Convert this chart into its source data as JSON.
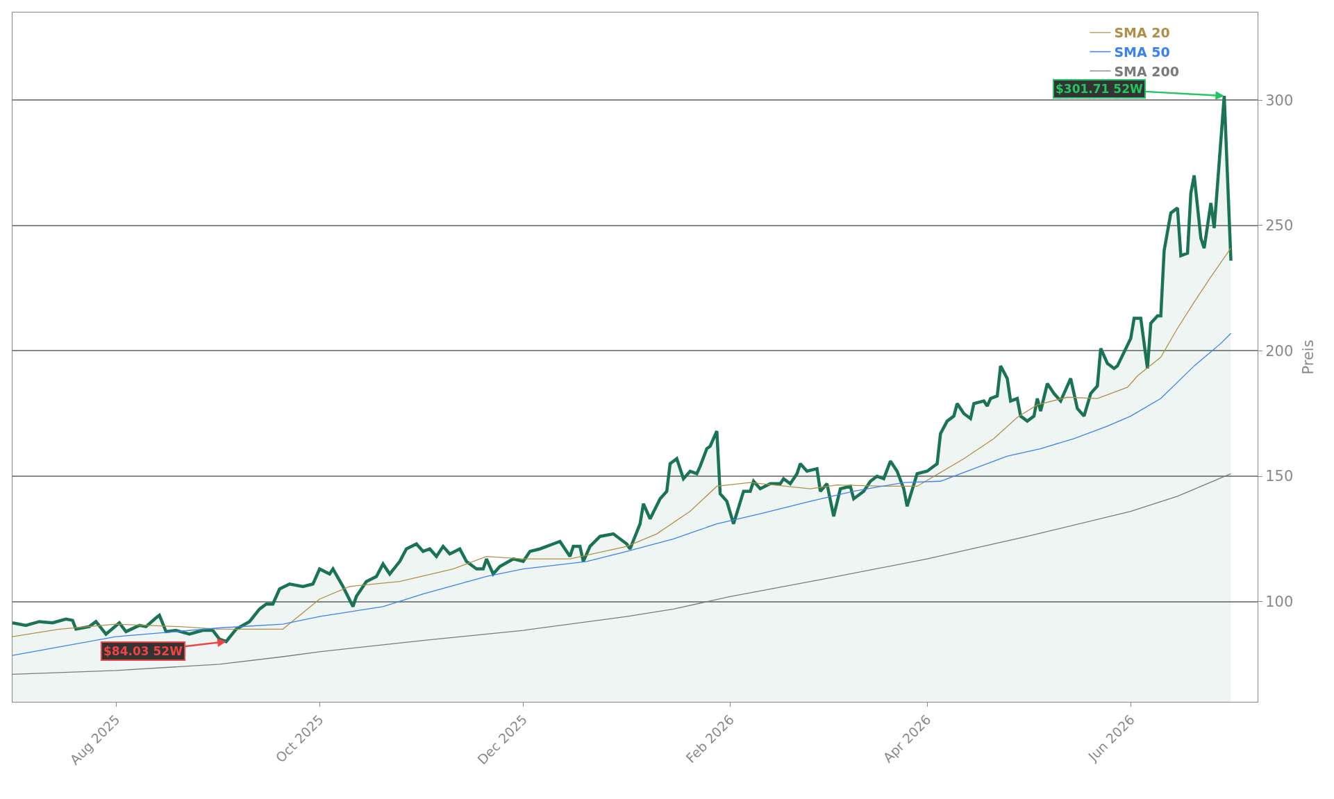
{
  "chart_data": {
    "type": "line",
    "ylabel": "Preis",
    "xlim": [
      "2025-07-01",
      "2026-07-09"
    ],
    "ylim": [
      60,
      335
    ],
    "xticks": [
      {
        "value": "2025-08-01",
        "label": "Aug 2025"
      },
      {
        "value": "2025-10-01",
        "label": "Oct 2025"
      },
      {
        "value": "2025-12-01",
        "label": "Dec 2025"
      },
      {
        "value": "2026-02-01",
        "label": "Feb 2026"
      },
      {
        "value": "2026-04-01",
        "label": "Apr 2026"
      },
      {
        "value": "2026-06-01",
        "label": "Jun 2026"
      }
    ],
    "yticks": [
      100,
      150,
      200,
      250,
      300
    ],
    "grid": "y",
    "legend": "top right",
    "series": [
      {
        "type": "area",
        "color": "#1a7353",
        "x": [
          "2025-07-01",
          "2025-07-05",
          "2025-07-09",
          "2025-07-13",
          "2025-07-17",
          "2025-07-19",
          "2025-07-20",
          "2025-07-24",
          "2025-07-26",
          "2025-07-29",
          "2025-08-02",
          "2025-08-04",
          "2025-08-08",
          "2025-08-10",
          "2025-08-13",
          "2025-08-14",
          "2025-08-16",
          "2025-08-19",
          "2025-08-23",
          "2025-08-27",
          "2025-08-30",
          "2025-09-01",
          "2025-09-03",
          "2025-09-06",
          "2025-09-10",
          "2025-09-13",
          "2025-09-15",
          "2025-09-17",
          "2025-09-19",
          "2025-09-22",
          "2025-09-26",
          "2025-09-29",
          "2025-10-01",
          "2025-10-04",
          "2025-10-05",
          "2025-10-08",
          "2025-10-11",
          "2025-10-12",
          "2025-10-15",
          "2025-10-18",
          "2025-10-20",
          "2025-10-22",
          "2025-10-25",
          "2025-10-27",
          "2025-10-30",
          "2025-11-01",
          "2025-11-03",
          "2025-11-05",
          "2025-11-07",
          "2025-11-09",
          "2025-11-12",
          "2025-11-14",
          "2025-11-17",
          "2025-11-19",
          "2025-11-20",
          "2025-11-22",
          "2025-11-24",
          "2025-11-28",
          "2025-12-01",
          "2025-12-03",
          "2025-12-06",
          "2025-12-10",
          "2025-12-12",
          "2025-12-15",
          "2025-12-16",
          "2025-12-18",
          "2025-12-19",
          "2025-12-21",
          "2025-12-24",
          "2025-12-28",
          "2026-01-01",
          "2026-01-02",
          "2026-01-05",
          "2026-01-06",
          "2026-01-08",
          "2026-01-11",
          "2026-01-13",
          "2026-01-14",
          "2026-01-16",
          "2026-01-18",
          "2026-01-20",
          "2026-01-22",
          "2026-01-23",
          "2026-01-25",
          "2026-01-26",
          "2026-01-28",
          "2026-01-29",
          "2026-01-31",
          "2026-02-02",
          "2026-02-05",
          "2026-02-07",
          "2026-02-08",
          "2026-02-10",
          "2026-02-13",
          "2026-02-16",
          "2026-02-17",
          "2026-02-19",
          "2026-02-21",
          "2026-02-22",
          "2026-02-24",
          "2026-02-27",
          "2026-02-28",
          "2026-03-02",
          "2026-03-04",
          "2026-03-06",
          "2026-03-09",
          "2026-03-10",
          "2026-03-13",
          "2026-03-15",
          "2026-03-17",
          "2026-03-19",
          "2026-03-21",
          "2026-03-23",
          "2026-03-25",
          "2026-03-26",
          "2026-03-29",
          "2026-04-01",
          "2026-04-04",
          "2026-04-05",
          "2026-04-07",
          "2026-04-09",
          "2026-04-10",
          "2026-04-12",
          "2026-04-14",
          "2026-04-15",
          "2026-04-18",
          "2026-04-19",
          "2026-04-20",
          "2026-04-22",
          "2026-04-23",
          "2026-04-25",
          "2026-04-26",
          "2026-04-28",
          "2026-04-29",
          "2026-05-01",
          "2026-05-03",
          "2026-05-04",
          "2026-05-05",
          "2026-05-07",
          "2026-05-09",
          "2026-05-11",
          "2026-05-14",
          "2026-05-16",
          "2026-05-18",
          "2026-05-20",
          "2026-05-22",
          "2026-05-23",
          "2026-05-25",
          "2026-05-27",
          "2026-05-28",
          "2026-06-01",
          "2026-06-02",
          "2026-06-04",
          "2026-06-06",
          "2026-06-07",
          "2026-06-09",
          "2026-06-10",
          "2026-06-11",
          "2026-06-13",
          "2026-06-15",
          "2026-06-16",
          "2026-06-18",
          "2026-06-19",
          "2026-06-20",
          "2026-06-22",
          "2026-06-23",
          "2026-06-25",
          "2026-06-26",
          "2026-06-29",
          "2026-07-01"
        ],
        "values": [
          91.5,
          90.5,
          92,
          91.5,
          93,
          92.5,
          89,
          90,
          92,
          87,
          91.5,
          88,
          90.5,
          90,
          93.5,
          94.5,
          88,
          88.5,
          87,
          88.5,
          88.5,
          85,
          84.03,
          89,
          92,
          97,
          99,
          99,
          105,
          107,
          106,
          107,
          113,
          111,
          113,
          106,
          98,
          102,
          108,
          110,
          115,
          111,
          116,
          121,
          123,
          120,
          121,
          118,
          122,
          119,
          121,
          116,
          113,
          113,
          117,
          111,
          114,
          117,
          116,
          120,
          121,
          123,
          124,
          118,
          122,
          122,
          116,
          122,
          126,
          127,
          123,
          121,
          131,
          139,
          133,
          141,
          144,
          155,
          157,
          149,
          152,
          151,
          154,
          161,
          162,
          168,
          143,
          140,
          131,
          144,
          144,
          148,
          145,
          147,
          147,
          149,
          147,
          151,
          155,
          152,
          153,
          144,
          147,
          134,
          145,
          146,
          141,
          144,
          148,
          150,
          149,
          156,
          152,
          145,
          138,
          151,
          152,
          155,
          167,
          172,
          174,
          179,
          175,
          173,
          179,
          180,
          178,
          181,
          182,
          194,
          189,
          180,
          181,
          174,
          172,
          174,
          181,
          176,
          187,
          183,
          180,
          189,
          177,
          174,
          183,
          186,
          201,
          195,
          193,
          194,
          205,
          213,
          213,
          193,
          211,
          214,
          214,
          240,
          255,
          257,
          238,
          239,
          263,
          270,
          245,
          241,
          259,
          249,
          301.71,
          236
        ]
      },
      {
        "name": "SMA 20",
        "color": "#b09048",
        "x": [
          "2025-07-01",
          "2025-07-15",
          "2025-08-01",
          "2025-08-20",
          "2025-09-01",
          "2025-09-20",
          "2025-10-01",
          "2025-10-10",
          "2025-10-25",
          "2025-11-10",
          "2025-11-20",
          "2025-12-01",
          "2025-12-15",
          "2026-01-01",
          "2026-01-10",
          "2026-01-20",
          "2026-01-28",
          "2026-02-07",
          "2026-02-25",
          "2026-03-05",
          "2026-03-20",
          "2026-03-29",
          "2026-04-05",
          "2026-04-12",
          "2026-04-21",
          "2026-04-28",
          "2026-05-04",
          "2026-05-13",
          "2026-05-22",
          "2026-05-31",
          "2026-06-03",
          "2026-06-10",
          "2026-06-15",
          "2026-06-20",
          "2026-06-25",
          "2026-07-01"
        ],
        "values": [
          86,
          89,
          91,
          90,
          89,
          89,
          101,
          106,
          108,
          113,
          118,
          117,
          117,
          122,
          127,
          136,
          146,
          147.5,
          145,
          146.5,
          146,
          146,
          151.5,
          157,
          165,
          173.5,
          178.5,
          181.5,
          181,
          185.5,
          190,
          197.5,
          209,
          219.5,
          229.5,
          241
        ]
      },
      {
        "name": "SMA 50",
        "color": "#3b82f0",
        "x": [
          "2025-07-01",
          "2025-08-01",
          "2025-09-01",
          "2025-09-20",
          "2025-10-01",
          "2025-10-20",
          "2025-11-01",
          "2025-11-20",
          "2025-12-01",
          "2025-12-20",
          "2026-01-01",
          "2026-01-15",
          "2026-01-28",
          "2026-02-10",
          "2026-02-25",
          "2026-03-10",
          "2026-03-25",
          "2026-04-05",
          "2026-04-15",
          "2026-04-25",
          "2026-05-05",
          "2026-05-15",
          "2026-05-25",
          "2026-06-01",
          "2026-06-10",
          "2026-06-20",
          "2026-06-28",
          "2026-07-01"
        ],
        "values": [
          78.5,
          86,
          89.5,
          91,
          94,
          98,
          103,
          110,
          113,
          116,
          120,
          125,
          131,
          135,
          140,
          144,
          147.5,
          148,
          153,
          158,
          161,
          165,
          170,
          174,
          181,
          194,
          203,
          207
        ]
      },
      {
        "name": "SMA 200",
        "color": "#7a7a7a",
        "x": [
          "2025-07-01",
          "2025-08-01",
          "2025-09-01",
          "2025-09-20",
          "2025-10-01",
          "2025-11-01",
          "2025-12-01",
          "2026-01-01",
          "2026-01-15",
          "2026-02-01",
          "2026-03-01",
          "2026-04-01",
          "2026-05-01",
          "2026-06-01",
          "2026-06-15",
          "2026-07-01"
        ],
        "values": [
          71,
          72.5,
          75,
          78,
          80,
          84.5,
          88.5,
          94,
          97,
          102,
          109,
          117,
          126,
          136,
          142,
          151
        ]
      }
    ],
    "annotations": [
      {
        "text": "$301.71 52W",
        "x": "2026-06-29",
        "y": 301.71
      },
      {
        "text": "$84.03 52W",
        "x": "2025-09-03",
        "y": 84.03
      }
    ]
  }
}
